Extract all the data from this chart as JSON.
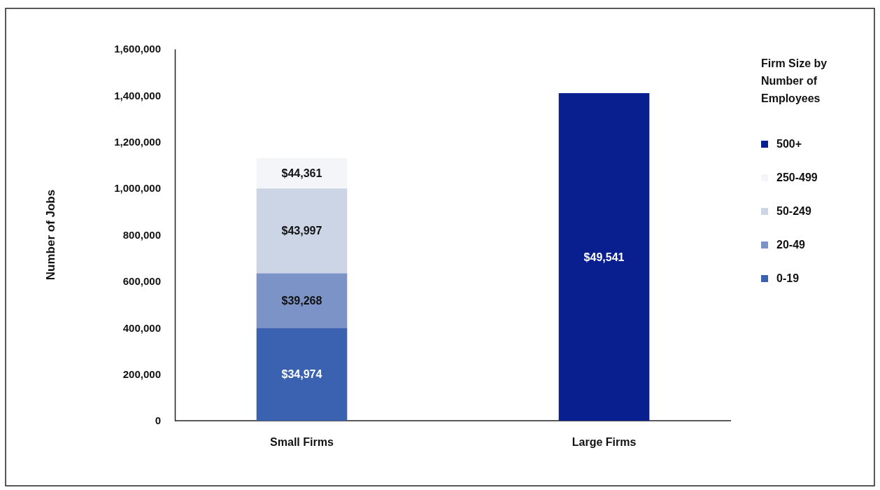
{
  "chart_data": {
    "type": "bar",
    "stacked": true,
    "ylabel": "Number of Jobs",
    "legend_title": "Firm Size by Number of Employees",
    "legend": "right",
    "categories": [
      "Small Firms",
      "Large Firms"
    ],
    "ylim": [
      0,
      1600000
    ],
    "yticks": [
      {
        "value": 0,
        "label": "0"
      },
      {
        "value": 200000,
        "label": "200,000"
      },
      {
        "value": 400000,
        "label": "400,000"
      },
      {
        "value": 600000,
        "label": "600,000"
      },
      {
        "value": 800000,
        "label": "800,000"
      },
      {
        "value": 1000000,
        "label": "1,000,000"
      },
      {
        "value": 1200000,
        "label": "1,200,000"
      },
      {
        "value": 1400000,
        "label": "1,400,000"
      },
      {
        "value": 1600000,
        "label": "1,600,000"
      }
    ],
    "series": [
      {
        "name": "0-19",
        "color": "#3a62b0",
        "values": [
          400000,
          null
        ]
      },
      {
        "name": "20-49",
        "color": "#7c93c8",
        "values": [
          235000,
          null
        ]
      },
      {
        "name": "50-249",
        "color": "#ccd5e6",
        "values": [
          365000,
          null
        ]
      },
      {
        "name": "250-499",
        "color": "#f3f5f9",
        "values": [
          130000,
          null
        ]
      },
      {
        "name": "500+",
        "color": "#0a1f8f",
        "values": [
          null,
          1410000
        ]
      }
    ],
    "annotations": [
      "$34,974",
      "$39,268",
      "$43,997",
      "$44,361",
      "$49,541"
    ]
  }
}
